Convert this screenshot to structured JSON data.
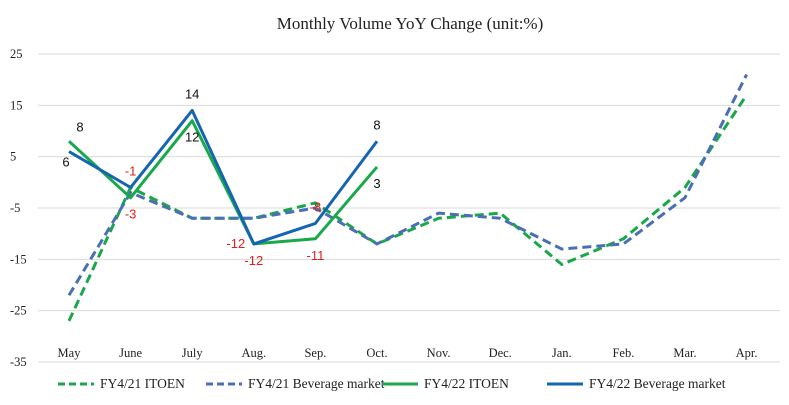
{
  "chart_data": {
    "type": "line",
    "title": "Monthly Volume YoY Change (unit:%)",
    "xlabel": "",
    "ylabel": "",
    "categories": [
      "May",
      "June",
      "July",
      "Aug.",
      "Sep.",
      "Oct.",
      "Nov.",
      "Dec.",
      "Jan.",
      "Feb.",
      "Mar.",
      "Apr."
    ],
    "ylim": [
      -35,
      25
    ],
    "yticks": [
      -35,
      -25,
      -15,
      -5,
      5,
      15,
      25
    ],
    "ytick_labels": [
      "-35",
      "-25",
      "-15",
      "-5",
      "5",
      "15",
      "25"
    ],
    "grid": true,
    "legend_position": "bottom",
    "series": [
      {
        "name": "FY4/21 ITOEN",
        "color": "#1aa64a",
        "style": "dashed",
        "values": [
          -27,
          -1,
          -7,
          -7,
          -4,
          -12,
          -7,
          -6,
          -16,
          -11,
          -1,
          17
        ]
      },
      {
        "name": "FY4/21 Beverage market",
        "color": "#4a6fb5",
        "style": "dashed",
        "values": [
          -22,
          -2,
          -7,
          -7,
          -5,
          -12,
          -6,
          -7,
          -13,
          -12,
          -3,
          21
        ]
      },
      {
        "name": "FY4/22 ITOEN",
        "color": "#19a84a",
        "style": "solid",
        "values": [
          8,
          -3,
          12,
          -12,
          -11,
          3,
          null,
          null,
          null,
          null,
          null,
          null
        ]
      },
      {
        "name": "FY4/22 Beverage market",
        "color": "#1565b0",
        "style": "solid",
        "values": [
          6,
          -1,
          14,
          -12,
          -8,
          8,
          null,
          null,
          null,
          null,
          null,
          null
        ]
      }
    ],
    "annotations": [
      {
        "text": "8",
        "series": "FY4/22 ITOEN",
        "category": "May",
        "color": "#111111",
        "anchor": "above-right"
      },
      {
        "text": "6",
        "series": "FY4/22 Beverage market",
        "category": "May",
        "color": "#111111",
        "anchor": "below-left"
      },
      {
        "text": "-1",
        "series": "FY4/22 Beverage market",
        "category": "June",
        "color": "#e0201b",
        "anchor": "above"
      },
      {
        "text": "-3",
        "series": "FY4/22 ITOEN",
        "category": "June",
        "color": "#e0201b",
        "anchor": "below"
      },
      {
        "text": "14",
        "series": "FY4/22 Beverage market",
        "category": "July",
        "color": "#111111",
        "anchor": "above"
      },
      {
        "text": "12",
        "series": "FY4/22 ITOEN",
        "category": "July",
        "color": "#111111",
        "anchor": "below"
      },
      {
        "text": "-12",
        "series": "FY4/22 Beverage market",
        "category": "Aug.",
        "color": "#e0201b",
        "anchor": "left"
      },
      {
        "text": "-12",
        "series": "FY4/22 ITOEN",
        "category": "Aug.",
        "color": "#e0201b",
        "anchor": "below"
      },
      {
        "text": "-8",
        "series": "FY4/22 Beverage market",
        "category": "Sep.",
        "color": "#e0201b",
        "anchor": "above"
      },
      {
        "text": "-11",
        "series": "FY4/22 ITOEN",
        "category": "Sep.",
        "color": "#e0201b",
        "anchor": "below"
      },
      {
        "text": "8",
        "series": "FY4/22 Beverage market",
        "category": "Oct.",
        "color": "#111111",
        "anchor": "above"
      },
      {
        "text": "3",
        "series": "FY4/22 ITOEN",
        "category": "Oct.",
        "color": "#111111",
        "anchor": "below"
      }
    ]
  }
}
